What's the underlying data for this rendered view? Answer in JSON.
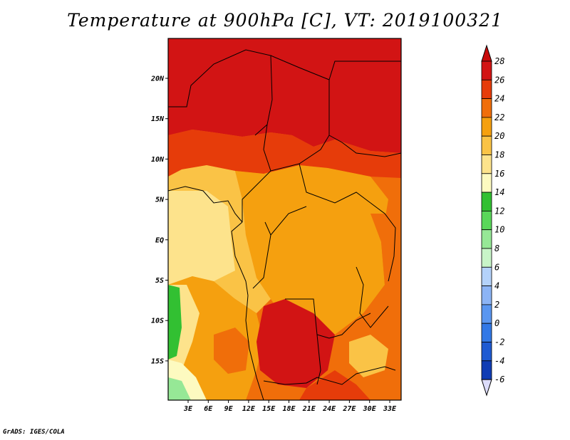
{
  "title": "Temperature at 900hPa [C], VT: 2019100321",
  "credit": "GrADS: IGES/COLA",
  "map": {
    "lat_labels": [
      "20N",
      "15N",
      "10N",
      "5N",
      "EQ",
      "5S",
      "10S",
      "15S"
    ],
    "lon_labels": [
      "3E",
      "6E",
      "9E",
      "12E",
      "15E",
      "18E",
      "21E",
      "24E",
      "27E",
      "30E",
      "33E"
    ]
  },
  "colorbar": {
    "labels": [
      "28",
      "26",
      "24",
      "22",
      "20",
      "18",
      "16",
      "14",
      "12",
      "10",
      "8",
      "6",
      "4",
      "2",
      "0",
      "-2",
      "-4",
      "-6"
    ],
    "colors": [
      "#d21414",
      "#e63c0a",
      "#f06e0a",
      "#f5a00f",
      "#fac346",
      "#fde38c",
      "#fdfac0",
      "#32c032",
      "#5ad75a",
      "#96e896",
      "#c8f5c8",
      "#b4d2fa",
      "#8cb4f5",
      "#5a96f0",
      "#3278e6",
      "#1e5ad2",
      "#0f3cb4",
      "#0a1e8c"
    ],
    "top_color": "#c80a0a",
    "bottom_color": "#dcdcfa"
  }
}
